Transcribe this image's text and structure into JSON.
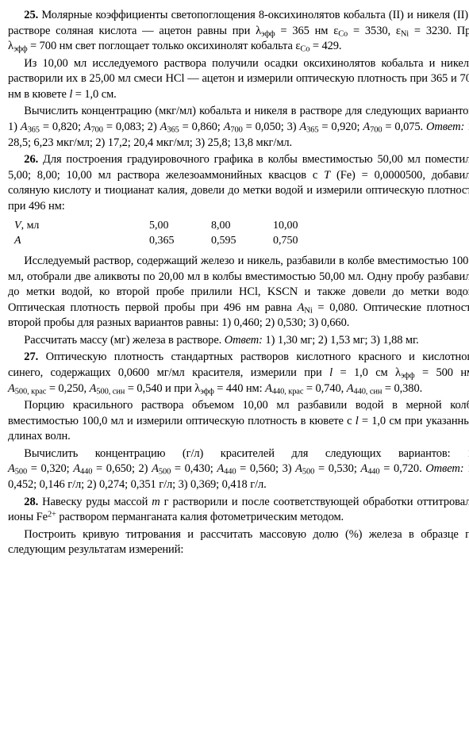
{
  "p25": {
    "num": "25.",
    "t1a": "Молярные коэффициенты светопоглощения 8-оксихинолятов кобальта (II) и никеля (II) в растворе соляная кислота — ацетон равны при ",
    "t1b": " нм  ",
    "t1c": ". При ",
    "t1d": " нм свет поглощает только оксихинолят кобальта ",
    "t2": "Из 10,00 мл исследуемого раствора получили осадки оксихинолятов кобальта и никеля, растворили их в 25,00 мл смеси HCl — ацетон и измерили оптическую плотность при 365 и 700 нм в кювете ",
    "t2b": " см.",
    "t3": "Вычислить концентрацию (мкг/мл) кобальта и никеля в растворе для следующих вариантов: 1) ",
    "t3a": "; 2) ",
    "t3b": "; 3) ",
    "t3c": ". ",
    "ans": "Ответ:",
    "t3d": " 1) 28,5; 6,23 мкг/мл; 2) 17,2; 20,4 мкг/мл; 3) 25,8; 13,8 мкг/мл.",
    "lam365": "λ",
    "lamSub": "эфф",
    "eq365": " = 365",
    "eCo": "ε",
    "coSub": "Co",
    "eqCo": " = 3530, ",
    "eNi": "ε",
    "niSub": "Ni",
    "eqNi": " = 3230",
    "eq700": " = 700",
    "eCo2": " = 429.",
    "l": "l",
    "leq": " = 1,0",
    "A365": "A",
    "A365sub": "365",
    "A365v1": " = 0,820; ",
    "A700": "A",
    "A700sub": "700",
    "A700v1": " = 0,083",
    "A365v2": " = 0,860; ",
    "A700v2": " = 0,050",
    "A365v3": " = 0,920; ",
    "A700v3": " = 0,075"
  },
  "p26": {
    "num": "26.",
    "t1": " Для построения градуировочного графика в колбы вместимостью 50,00 мл поместили 5,00; 8,00; 10,00 мл раствора железоаммонийных квасцов с ",
    "TFe": "T",
    "TFeArg": " (Fe) = 0,0000500",
    "t1b": ", добавили соляную кислоту и тиоцианат калия, довели до метки водой и измерили оптическую плотность при 496 нм:",
    "row0c0i": "V",
    "row0c0t": ", мл",
    "row1c0": "A",
    "row0c1": "5,00",
    "row0c2": "8,00",
    "row0c3": "10,00",
    "row1c1": "0,365",
    "row1c2": "0,595",
    "row1c3": "0,750",
    "t2": "Исследуемый раствор, содержащий железо и никель, разбавили в колбе вместимостью 100,0 мл, отобрали две аликвоты по 20,00 мл в колбы вместимостью 50,00 мл. Одну пробу разбавили до метки водой, ко второй пробе прилили HCl, KSCN и также довели до метки водой. Оптическая плотность первой пробы при 496 нм равна ",
    "ANi": "A",
    "ANiSub": "Ni",
    "ANiVal": " = 0,080",
    "t2b": ". Оптические плотности второй пробы для разных вариантов равны: 1) 0,460; 2) 0,530; 3) 0,660.",
    "t3": "Рассчитать массу (мг) железа в растворе. ",
    "ans": "Ответ:",
    "t3b": " 1) 1,30 мг; 2) 1,53 мг; 3) 1,88 мг."
  },
  "p27": {
    "num": "27.",
    "t1": " Оптическую плотность стандартных растворов кислотного красного и кислотного синего, содержащих 0,0600 мг/мл красителя, измерили при ",
    "l": "l",
    "leq": " = 1,0",
    "t1a": " см ",
    "lam": "λ",
    "lamSub": "эфф",
    "lam500": " = 500",
    "t1b": " нм: ",
    "A500k": "A",
    "A500kSub": "500, крас",
    "A500kV": " = 0,250, ",
    "A500s": "A",
    "A500sSub": "500, син",
    "A500sV": " = 0,540",
    "t1c": " и при ",
    "lam440": " = 440",
    "t1d": " нм: ",
    "A440k": "A",
    "A440kSub": "440, крас",
    "A440kV": " = 0,740, ",
    "A440s": "A",
    "A440sSub": "440, син",
    "A440sV": " = 0,380.",
    "t2": "Порцию красильного раствора объемом 10,00 мл разбавили водой в мерной колбе вместимостью 100,0 мл и измерили оптическую плотность в кювете с ",
    "t2b": " см при указанных длинах волн.",
    "t3": "Вычислить концентрацию (г/л) красителей для следующих вариантов: 1) ",
    "A500": "A",
    "A500sub": "500",
    "A500v1": " = 0,320; ",
    "A440": "A",
    "A440sub": "440",
    "A440v1": " = 0,650",
    "t3a": "; 2) ",
    "A500v2": " = 0,430; ",
    "A440v2": " = 0,560",
    "t3b": "; 3) ",
    "A500v3": " = 0,530; ",
    "A440v3": " = 0,720. ",
    "ans": "Ответ:",
    "t3c": " 1) 0,452; 0,146 г/л; 2) 0,274; 0,351 г/л; 3) 0,369; 0,418 г/л."
  },
  "p28": {
    "num": "28.",
    "t1": " Навеску руды массой ",
    "m": "m",
    "t1b": " г растворили и после соответствующей обработки оттитровали ионы Fe",
    "sup": "2+",
    "t1c": " раствором перманганата калия фотометрическим методом.",
    "t2": "Построить кривую титрования и рассчитать массовую долю (%) железа в образце по следующим результатам измерений:"
  }
}
